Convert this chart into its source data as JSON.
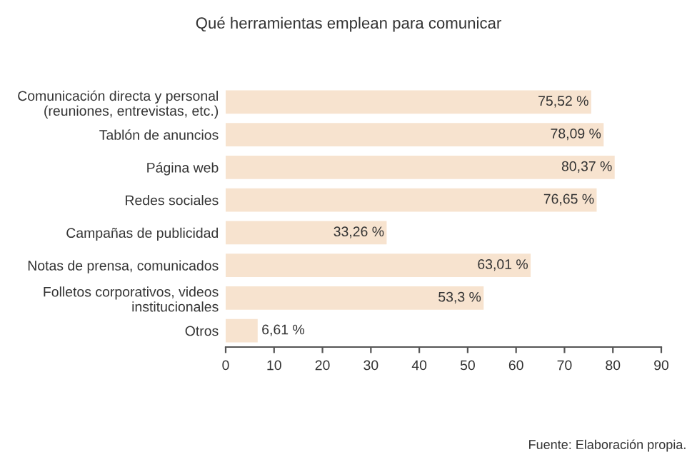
{
  "chart_data": {
    "type": "bar",
    "orientation": "horizontal",
    "title": "Qué herramientas emplean para comunicar",
    "categories": [
      "Comunicación directa y personal\n(reuniones, entrevistas, etc.)",
      "Tablón de anuncios",
      "Página web",
      "Redes sociales",
      "Campañas de publicidad",
      "Notas de prensa, comunicados",
      "Folletos corporativos, videos\ninstitucionales",
      "Otros"
    ],
    "values": [
      75.52,
      78.09,
      80.37,
      76.65,
      33.26,
      63.01,
      53.3,
      6.61
    ],
    "value_labels": [
      "75,52 %",
      "78,09 %",
      "80,37 %",
      "76,65 %",
      "33,26 %",
      "63,01 %",
      "53,3 %",
      "6,61 %"
    ],
    "color": "#f7e3cf",
    "xlim": [
      0,
      90
    ],
    "xticks": [
      0,
      10,
      20,
      30,
      40,
      50,
      60,
      70,
      80,
      90
    ],
    "grid": false,
    "annotations": [
      "Fuente: Elaboración propia."
    ]
  }
}
